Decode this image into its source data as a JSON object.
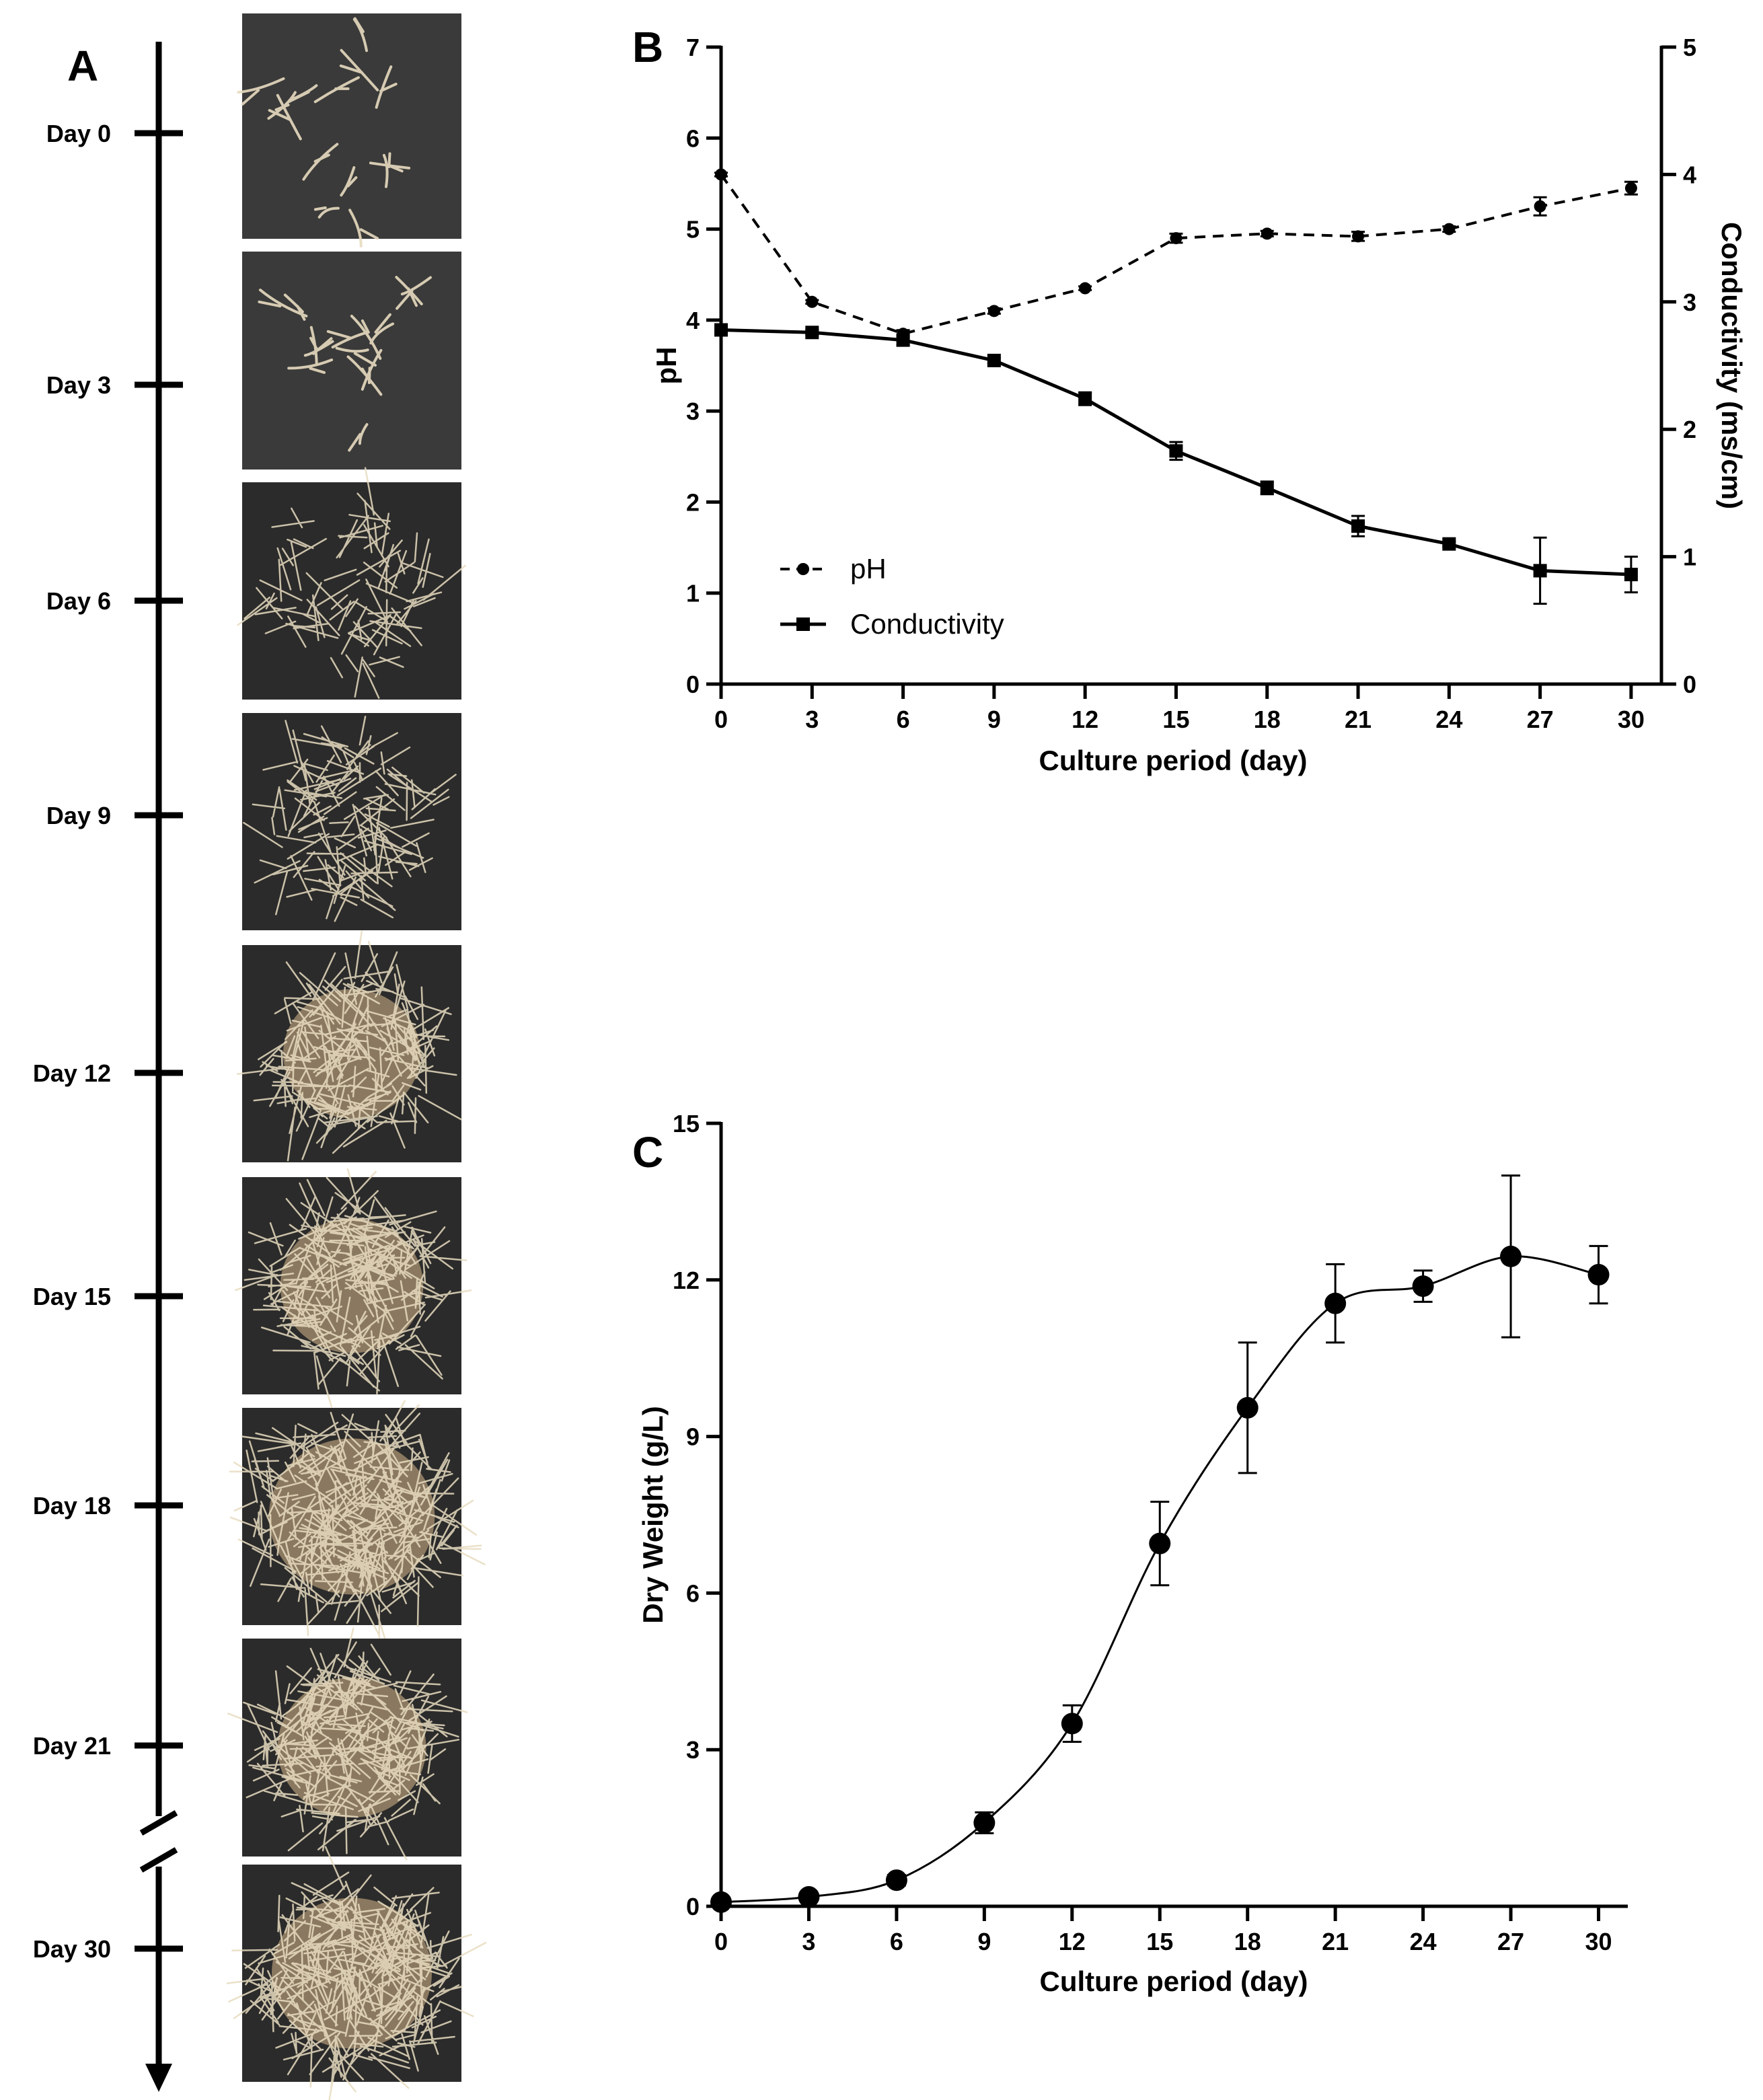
{
  "panels": {
    "a": {
      "label": "A",
      "day_labels": [
        "Day 0",
        "Day 3",
        "Day 6",
        "Day 9",
        "Day 12",
        "Day 15",
        "Day 18",
        "Day 21",
        "Day 30"
      ],
      "photo_colors": {
        "background_dark": "#2b2b2b",
        "background_gray": "#3a3a3a",
        "root_light": "#e8dcc0",
        "root_tan": "#d9b98c"
      }
    },
    "b": {
      "label": "B"
    },
    "c": {
      "label": "C"
    }
  },
  "chart_data": [
    {
      "type": "line",
      "title": "",
      "xlabel": "Culture period (day)",
      "ylabel": "pH",
      "ylabel_right": "Conductivity (ms/cm)",
      "x": [
        0,
        3,
        6,
        9,
        12,
        15,
        18,
        21,
        24,
        27,
        30
      ],
      "x_ticks": [
        "0",
        "3",
        "6",
        "9",
        "12",
        "15",
        "18",
        "21",
        "24",
        "27",
        "30"
      ],
      "xlim": [
        0,
        31
      ],
      "ylim": [
        0,
        7
      ],
      "y_ticks": [
        "0",
        "1",
        "2",
        "3",
        "4",
        "5",
        "6",
        "7"
      ],
      "ylim_right": [
        0,
        5
      ],
      "y_ticks_right": [
        "0",
        "1",
        "2",
        "3",
        "4",
        "5"
      ],
      "legend": [
        "pH",
        "Conductivity"
      ],
      "legend_position": "bottom-left",
      "series": [
        {
          "name": "pH",
          "axis": "left",
          "style": "dashed",
          "marker": "circle",
          "values": [
            5.6,
            4.2,
            3.85,
            4.1,
            4.35,
            4.9,
            4.95,
            4.92,
            5.0,
            5.25,
            5.45
          ],
          "errors": [
            0.02,
            0.02,
            0.04,
            0.03,
            0.02,
            0.05,
            0.03,
            0.05,
            0.03,
            0.1,
            0.07
          ]
        },
        {
          "name": "Conductivity",
          "axis": "right",
          "style": "solid",
          "marker": "square",
          "values": [
            2.78,
            2.76,
            2.7,
            2.54,
            2.24,
            1.83,
            1.54,
            1.24,
            1.1,
            0.89,
            0.86
          ],
          "errors": [
            0.03,
            0.02,
            0.04,
            0.02,
            0.05,
            0.07,
            0.05,
            0.08,
            0.02,
            0.26,
            0.14
          ]
        }
      ]
    },
    {
      "type": "line",
      "title": "",
      "xlabel": "Culture period (day)",
      "ylabel": "Dry Weight (g/L)",
      "x": [
        0,
        3,
        6,
        9,
        12,
        15,
        18,
        21,
        24,
        27,
        30
      ],
      "x_ticks": [
        "0",
        "3",
        "6",
        "9",
        "12",
        "15",
        "18",
        "21",
        "24",
        "27",
        "30"
      ],
      "xlim": [
        0,
        31
      ],
      "ylim": [
        0,
        15
      ],
      "y_ticks": [
        "0",
        "3",
        "6",
        "9",
        "12",
        "15"
      ],
      "series": [
        {
          "name": "Dry Weight",
          "style": "solid",
          "marker": "circle",
          "values": [
            0.08,
            0.18,
            0.5,
            1.6,
            3.5,
            6.95,
            9.55,
            11.55,
            11.88,
            12.45,
            12.1
          ],
          "errors": [
            0.03,
            0.05,
            0.1,
            0.2,
            0.35,
            0.8,
            1.25,
            0.75,
            0.3,
            1.55,
            0.55
          ]
        }
      ]
    }
  ]
}
